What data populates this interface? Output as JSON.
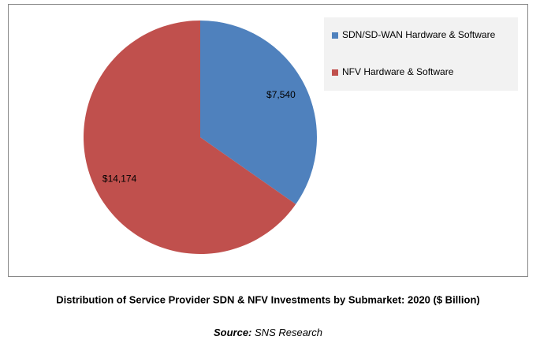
{
  "chart_data": {
    "type": "pie",
    "title": "Distribution of Service Provider SDN & NFV Investments by Submarket: 2020 ($ Billion)",
    "source_label": "Source:",
    "source": "SNS Research",
    "categories": [
      "SDN/SD-WAN Hardware & Software",
      "NFV Hardware & Software"
    ],
    "values": [
      7540,
      14174
    ],
    "value_labels": [
      "$7,540",
      "$14,174"
    ],
    "colors": [
      "#4f81bd",
      "#c0504d"
    ],
    "legend": "top-right"
  }
}
